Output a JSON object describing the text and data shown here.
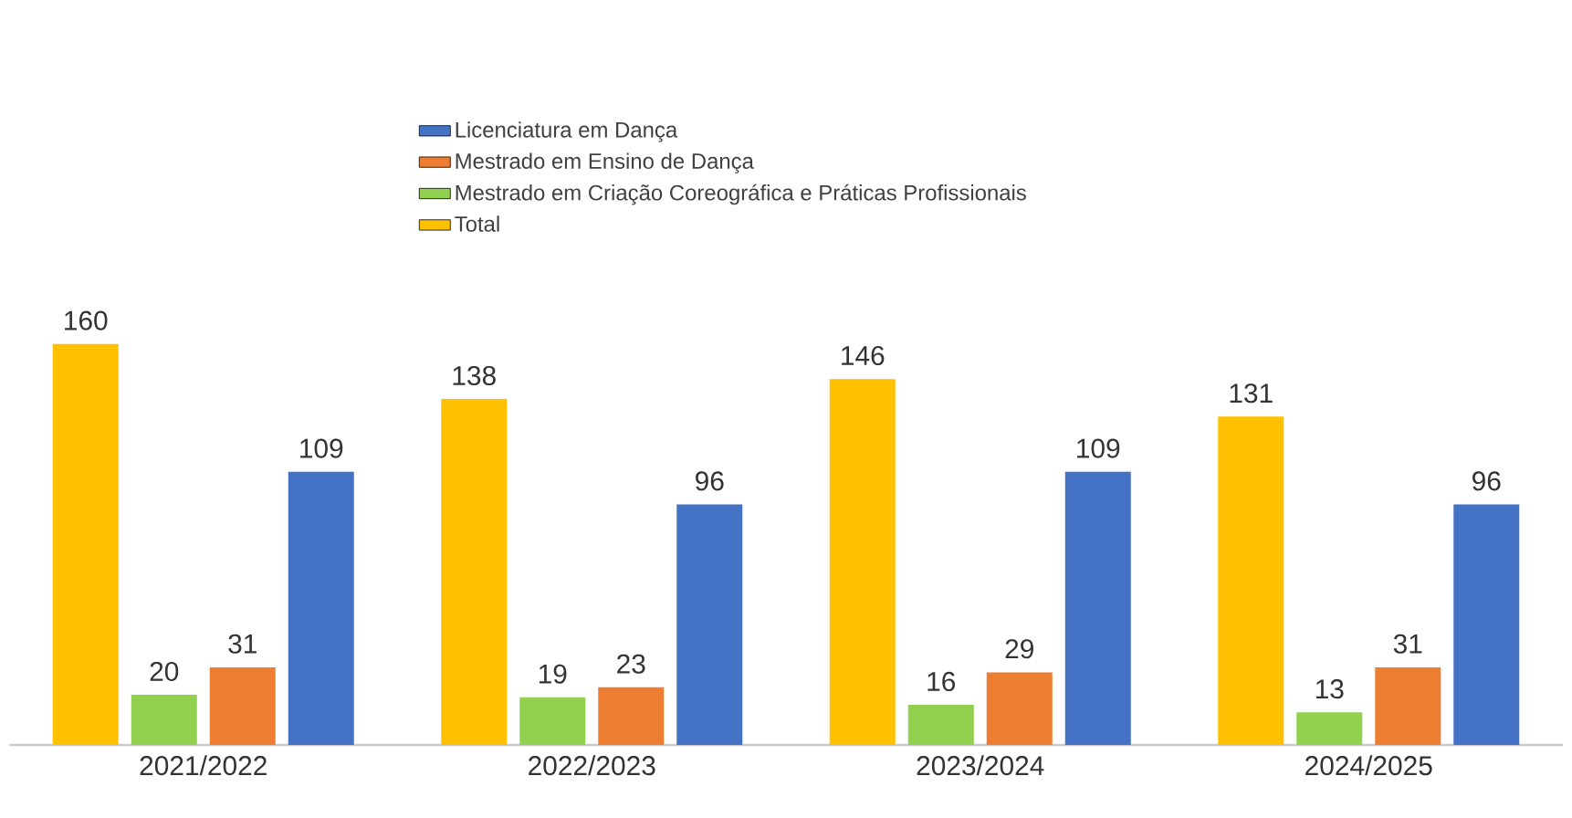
{
  "chart_data": {
    "type": "bar",
    "categories": [
      "2021/2022",
      "2022/2023",
      "2023/2024",
      "2024/2025"
    ],
    "series": [
      {
        "name": "Total",
        "color": "#ffc000",
        "values": [
          160,
          138,
          146,
          131
        ]
      },
      {
        "name": "Mestrado em Criação Coreográfica e Práticas Profissionais",
        "color": "#92d050",
        "values": [
          20,
          19,
          16,
          13
        ]
      },
      {
        "name": "Mestrado em Ensino de Dança",
        "color": "#ed7d31",
        "values": [
          31,
          23,
          29,
          31
        ]
      },
      {
        "name": "Licenciatura em Dança",
        "color": "#4472c4",
        "values": [
          109,
          96,
          109,
          96
        ]
      }
    ],
    "data_labels": true,
    "legend": "top",
    "grid": false
  }
}
